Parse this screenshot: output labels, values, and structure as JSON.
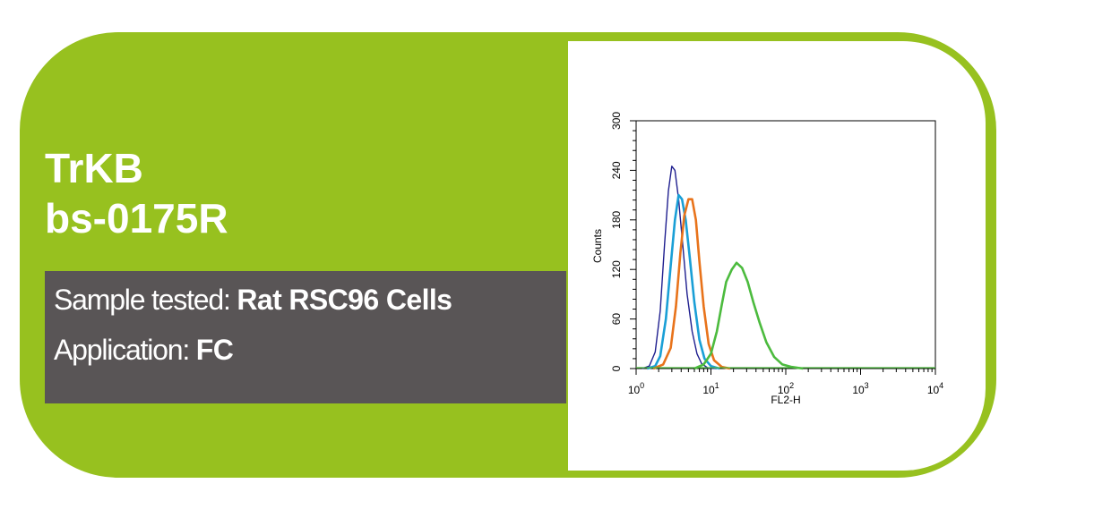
{
  "product": {
    "antigen": "TrKB",
    "catalog": "bs-0175R"
  },
  "info": {
    "sample_label": "Sample tested:",
    "sample_value": "Rat RSC96 Cells",
    "application_label": "Application:",
    "application_value": "FC"
  },
  "colors": {
    "brand_green": "#97c11f",
    "info_box": "#595556"
  },
  "chart_data": {
    "type": "line",
    "title": "",
    "xlabel": "FL2-H",
    "ylabel": "Counts",
    "x_scale": "log",
    "xlim": [
      1,
      10000
    ],
    "ylim": [
      0,
      300
    ],
    "x_ticks": [
      {
        "base": "10",
        "exp": "0"
      },
      {
        "base": "10",
        "exp": "1"
      },
      {
        "base": "10",
        "exp": "2"
      },
      {
        "base": "10",
        "exp": "3"
      },
      {
        "base": "10",
        "exp": "4"
      }
    ],
    "y_ticks": [
      "0",
      "60",
      "120",
      "180",
      "240",
      "300"
    ],
    "grid": false,
    "series": [
      {
        "color": "#1f1f8f",
        "points": [
          [
            1.2,
            0
          ],
          [
            1.5,
            3
          ],
          [
            1.8,
            20
          ],
          [
            2.1,
            70
          ],
          [
            2.4,
            150
          ],
          [
            2.7,
            215
          ],
          [
            3.0,
            245
          ],
          [
            3.3,
            240
          ],
          [
            3.7,
            205
          ],
          [
            4.2,
            150
          ],
          [
            4.8,
            90
          ],
          [
            5.6,
            45
          ],
          [
            6.5,
            18
          ],
          [
            7.5,
            6
          ],
          [
            9,
            1
          ],
          [
            12,
            0
          ]
        ]
      },
      {
        "color": "#1a9fd6",
        "points": [
          [
            1.4,
            0
          ],
          [
            1.8,
            3
          ],
          [
            2.1,
            15
          ],
          [
            2.5,
            60
          ],
          [
            2.9,
            125
          ],
          [
            3.3,
            180
          ],
          [
            3.7,
            210
          ],
          [
            4.1,
            205
          ],
          [
            4.6,
            180
          ],
          [
            5.2,
            135
          ],
          [
            6.0,
            80
          ],
          [
            7.0,
            35
          ],
          [
            8.2,
            12
          ],
          [
            10,
            3
          ],
          [
            13,
            0
          ]
        ]
      },
      {
        "color": "#e8731b",
        "points": [
          [
            1.7,
            0
          ],
          [
            2.3,
            5
          ],
          [
            2.9,
            25
          ],
          [
            3.4,
            75
          ],
          [
            3.9,
            140
          ],
          [
            4.4,
            185
          ],
          [
            5.0,
            205
          ],
          [
            5.6,
            205
          ],
          [
            6.3,
            180
          ],
          [
            7.0,
            130
          ],
          [
            8.0,
            75
          ],
          [
            9.3,
            30
          ],
          [
            11,
            10
          ],
          [
            14,
            2
          ],
          [
            18,
            0
          ]
        ]
      },
      {
        "color": "#4cbb3e",
        "points": [
          [
            6,
            0
          ],
          [
            8,
            5
          ],
          [
            10,
            18
          ],
          [
            12,
            45
          ],
          [
            14,
            78
          ],
          [
            16,
            105
          ],
          [
            19,
            120
          ],
          [
            22,
            128
          ],
          [
            26,
            122
          ],
          [
            31,
            105
          ],
          [
            37,
            80
          ],
          [
            45,
            55
          ],
          [
            55,
            32
          ],
          [
            70,
            14
          ],
          [
            90,
            5
          ],
          [
            120,
            2
          ],
          [
            170,
            0
          ]
        ]
      }
    ]
  }
}
